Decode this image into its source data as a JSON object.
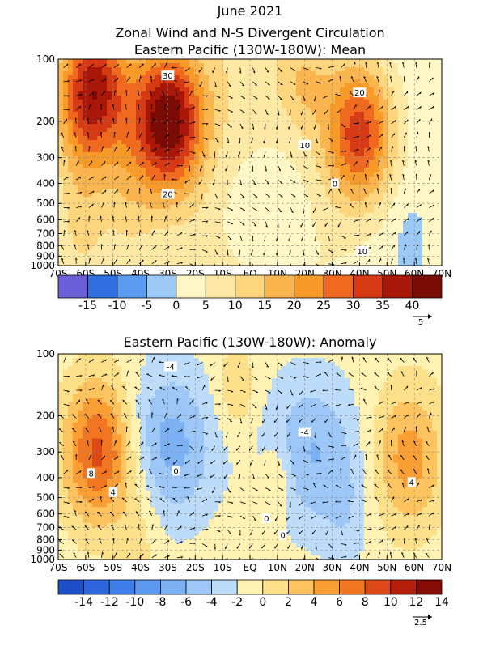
{
  "figure": {
    "title_line1": "June 2021",
    "title_line2": "Zonal Wind and N-S Divergent Circulation",
    "colors": {
      "neg4": "#6a5fd6",
      "neg3": "#2f6fe0",
      "neg2": "#5b9cf0",
      "neg1": "#9ccaf7",
      "zero": "#fff8c6",
      "pos1": "#fde9a4",
      "pos2": "#fcd57c",
      "pos3": "#fbb54e",
      "pos4": "#f79a28",
      "pos5": "#ef6a1e",
      "pos6": "#d63a14",
      "pos7": "#a81707",
      "pos8": "#7a0c05"
    }
  },
  "chart_data": [
    {
      "type": "heatmap",
      "title": "Eastern Pacific (130W-180W): Mean",
      "x_ticks": [
        "70S",
        "60S",
        "50S",
        "40S",
        "30S",
        "20S",
        "10S",
        "EQ",
        "10N",
        "20N",
        "30N",
        "40N",
        "50N",
        "60N",
        "70N"
      ],
      "y_ticks": [
        "100",
        "200",
        "300",
        "400",
        "500",
        "600",
        "700",
        "800",
        "900",
        "1000"
      ],
      "y_values": [
        100,
        200,
        300,
        400,
        500,
        600,
        700,
        800,
        900,
        1000
      ],
      "y_scale": "log",
      "colorbar_labels": [
        "-15",
        "-10",
        "-5",
        "0",
        "5",
        "10",
        "15",
        "20",
        "25",
        "30",
        "35",
        "40"
      ],
      "colorbar_levels": [
        -20,
        -15,
        -10,
        -5,
        0,
        5,
        10,
        15,
        20,
        25,
        30,
        35,
        40,
        45
      ],
      "vector_reference": "5",
      "contour_labels": [
        {
          "text": "30",
          "lat": -30,
          "p": 120
        },
        {
          "text": "20",
          "lat": -30,
          "p": 450
        },
        {
          "text": "10",
          "lat": 20,
          "p": 260
        },
        {
          "text": "20",
          "lat": 40,
          "p": 145
        },
        {
          "text": "0",
          "lat": 31,
          "p": 400
        },
        {
          "text": "10",
          "lat": 41,
          "p": 850
        }
      ],
      "wind_features": [
        {
          "name": "subtropical jet SH",
          "lat": -30,
          "p": 200,
          "max": 40
        },
        {
          "name": "polar jet SH",
          "lat": -57,
          "p": 140,
          "max": 35
        },
        {
          "name": "NH jet",
          "lat": 40,
          "p": 230,
          "max": 30
        },
        {
          "name": "easterlies",
          "lat": 5,
          "p": 550,
          "min": -8
        }
      ]
    },
    {
      "type": "heatmap",
      "title": "Eastern Pacific (130W-180W): Anomaly",
      "x_ticks": [
        "70S",
        "60S",
        "50S",
        "40S",
        "30S",
        "20S",
        "10S",
        "EQ",
        "10N",
        "20N",
        "30N",
        "40N",
        "50N",
        "60N",
        "70N"
      ],
      "y_ticks": [
        "100",
        "200",
        "300",
        "400",
        "500",
        "600",
        "700",
        "800",
        "900",
        "1000"
      ],
      "y_values": [
        100,
        200,
        300,
        400,
        500,
        600,
        700,
        800,
        900,
        1000
      ],
      "y_scale": "log",
      "colorbar_labels": [
        "-14",
        "-12",
        "-10",
        "-8",
        "-6",
        "-4",
        "-2",
        "0",
        "2",
        "4",
        "6",
        "8",
        "10",
        "12",
        "14"
      ],
      "colorbar_levels": [
        -16,
        -14,
        -12,
        -10,
        -8,
        -6,
        -4,
        -2,
        0,
        2,
        4,
        6,
        8,
        10,
        12,
        14,
        16
      ],
      "vector_reference": "2.5",
      "contour_labels": [
        {
          "text": "-4",
          "lat": -29,
          "p": 115
        },
        {
          "text": "8",
          "lat": -58,
          "p": 380
        },
        {
          "text": "4",
          "lat": -50,
          "p": 470
        },
        {
          "text": "-4",
          "lat": 20,
          "p": 240
        },
        {
          "text": "0",
          "lat": -27,
          "p": 370
        },
        {
          "text": "0",
          "lat": 6,
          "p": 630
        },
        {
          "text": "0",
          "lat": 12,
          "p": 760
        },
        {
          "text": "4",
          "lat": 59,
          "p": 420
        }
      ],
      "wind_features": [
        {
          "name": "SH midlatitude westerly anomaly",
          "lat": -55,
          "p": 300,
          "max": 10
        },
        {
          "name": "SH subtropical easterly anomaly",
          "lat": -30,
          "p": 280,
          "min": -6
        },
        {
          "name": "NH easterly anomaly",
          "lat": 22,
          "p": 300,
          "min": -5
        },
        {
          "name": "NH westerly anomaly",
          "lat": 58,
          "p": 320,
          "max": 6
        }
      ]
    }
  ]
}
